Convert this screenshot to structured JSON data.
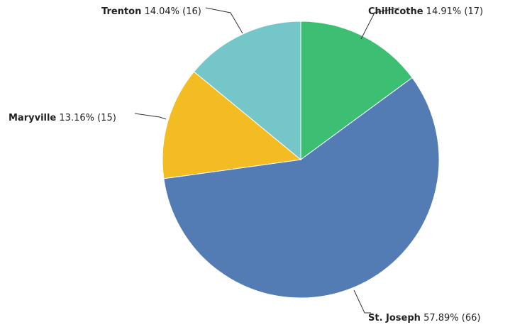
{
  "chart_data": {
    "type": "pie",
    "title": "",
    "slices": [
      {
        "label": "Chillicothe",
        "percent": "14.91%",
        "count": "(17)",
        "value": 17,
        "color": "#3cbe73"
      },
      {
        "label": "St. Joseph",
        "percent": "57.89%",
        "count": "(66)",
        "value": 66,
        "color": "#537cb4"
      },
      {
        "label": "Maryville",
        "percent": "13.16%",
        "count": "(15)",
        "value": 15,
        "color": "#f2bc22"
      },
      {
        "label": "Trenton",
        "percent": "14.04%",
        "count": "(16)",
        "value": 16,
        "color": "#74c6c9"
      }
    ]
  }
}
